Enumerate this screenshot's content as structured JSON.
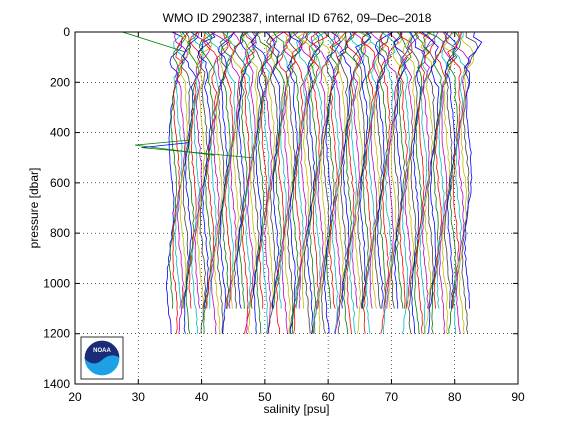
{
  "chart_data": {
    "type": "line",
    "title": "WMO ID 2902387, internal ID 6762, 09–Dec–2018",
    "xlabel": "salinity [psu]",
    "ylabel": "pressure [dbar]",
    "xlim": [
      20,
      90
    ],
    "ylim": [
      0,
      1400
    ],
    "y_reversed": true,
    "grid": true,
    "x_ticks": [
      20,
      30,
      40,
      50,
      60,
      70,
      80,
      90
    ],
    "y_ticks": [
      0,
      200,
      400,
      600,
      800,
      1000,
      1200,
      1400
    ],
    "x_tick_labels": [
      "20",
      "30",
      "40",
      "50",
      "60",
      "70",
      "80",
      "90"
    ],
    "y_tick_labels": [
      "0",
      "200",
      "400",
      "600",
      "800",
      "1000",
      "1200",
      "1400"
    ],
    "profile_count": 120,
    "profile_offset_start": 35.5,
    "profile_offset_end": 82.5,
    "profile_max_pressure": [
      1100,
      1200
    ],
    "series_colors": [
      "#0000ff",
      "#008000",
      "#ff0000",
      "#00bfbf",
      "#bf00bf",
      "#bfbf00",
      "#404040"
    ],
    "outliers": [
      {
        "x": 27.5,
        "y": 0
      },
      {
        "x": 29.5,
        "y": 450
      },
      {
        "x": 30.5,
        "y": 460
      }
    ]
  },
  "logo": {
    "text": "NOAA",
    "colors": {
      "top": "#1a2c78",
      "bottom": "#1ea0e6",
      "ring": "#ffffff"
    }
  }
}
